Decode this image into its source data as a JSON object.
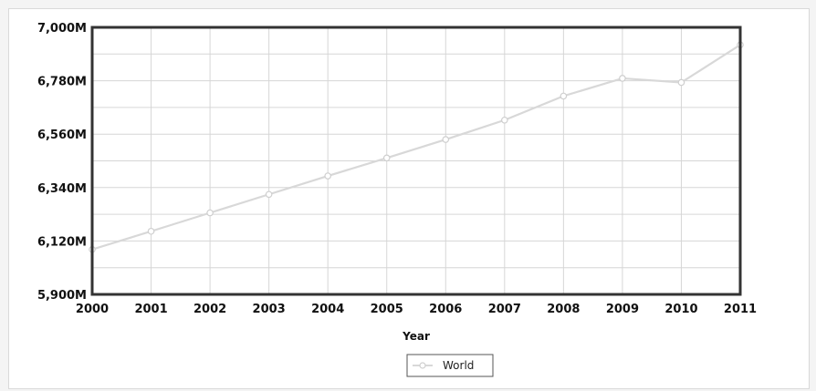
{
  "chart_data": {
    "type": "line",
    "title": "",
    "xlabel": "Year",
    "ylabel": "",
    "x": [
      2000,
      2001,
      2002,
      2003,
      2004,
      2005,
      2006,
      2007,
      2008,
      2009,
      2010,
      2011
    ],
    "series": [
      {
        "name": "World",
        "values": [
          6085,
          6160,
          6236,
          6312,
          6388,
          6462,
          6538,
          6618,
          6717,
          6790,
          6773,
          6928
        ]
      }
    ],
    "ylim": [
      5900,
      7000
    ],
    "y_ticks": [
      "5,900M",
      "6,120M",
      "6,340M",
      "6,560M",
      "6,780M",
      "7,000M"
    ],
    "y_tick_values": [
      5900,
      6120,
      6340,
      6560,
      6780,
      7000
    ],
    "x_tick_labels": [
      "2000",
      "2001",
      "2002",
      "2003",
      "2004",
      "2005",
      "2006",
      "2007",
      "2008",
      "2009",
      "2010",
      "2011"
    ],
    "grid": true,
    "legend_position": "bottom-center",
    "colors": {
      "line": "#d8d8d8",
      "marker_fill": "#ffffff",
      "marker_stroke": "#cfcfcf",
      "grid": "#d6d6d6",
      "plot_border": "#333333"
    }
  }
}
